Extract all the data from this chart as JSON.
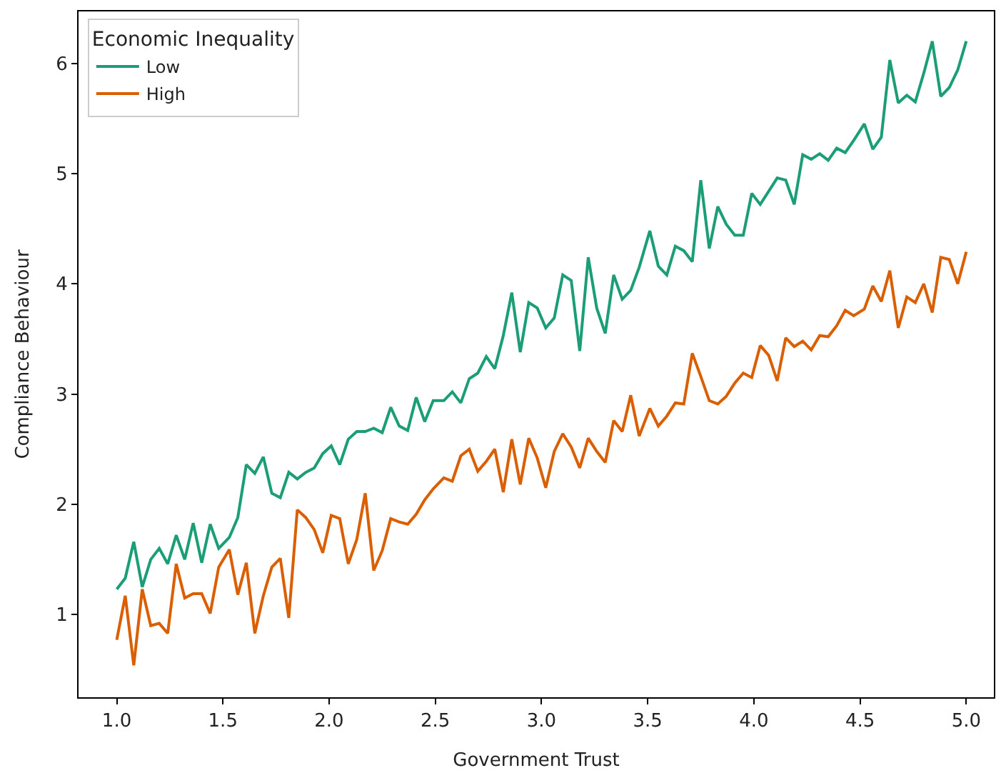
{
  "chart_data": {
    "type": "line",
    "xlabel": "Government Trust",
    "ylabel": "Compliance Behaviour",
    "legend_title": "Economic Inequality",
    "legend": "top left",
    "line_style": "solid",
    "marker": "none",
    "x": [
      1.0,
      1.04,
      1.08,
      1.12,
      1.16,
      1.2,
      1.24,
      1.28,
      1.32,
      1.36,
      1.4,
      1.44,
      1.48,
      1.53,
      1.57,
      1.61,
      1.65,
      1.69,
      1.73,
      1.77,
      1.81,
      1.85,
      1.89,
      1.93,
      1.97,
      2.01,
      2.05,
      2.09,
      2.13,
      2.17,
      2.21,
      2.25,
      2.29,
      2.33,
      2.37,
      2.41,
      2.45,
      2.49,
      2.54,
      2.58,
      2.62,
      2.66,
      2.7,
      2.74,
      2.78,
      2.82,
      2.86,
      2.9,
      2.94,
      2.98,
      3.02,
      3.06,
      3.1,
      3.14,
      3.18,
      3.22,
      3.26,
      3.3,
      3.34,
      3.38,
      3.42,
      3.46,
      3.51,
      3.55,
      3.59,
      3.63,
      3.67,
      3.71,
      3.75,
      3.79,
      3.83,
      3.87,
      3.91,
      3.95,
      3.99,
      4.03,
      4.07,
      4.11,
      4.15,
      4.19,
      4.23,
      4.27,
      4.31,
      4.35,
      4.39,
      4.43,
      4.47,
      4.52,
      4.56,
      4.6,
      4.64,
      4.68,
      4.72,
      4.76,
      4.8,
      4.84,
      4.88,
      4.92,
      4.96,
      5.0
    ],
    "series": [
      {
        "name": "Low",
        "color": "#1b9e77",
        "values": [
          1.23,
          1.33,
          1.66,
          1.25,
          1.5,
          1.6,
          1.46,
          1.72,
          1.5,
          1.83,
          1.47,
          1.82,
          1.6,
          1.7,
          1.88,
          2.36,
          2.28,
          2.43,
          2.1,
          2.06,
          2.29,
          2.23,
          2.29,
          2.33,
          2.46,
          2.53,
          2.36,
          2.59,
          2.66,
          2.66,
          2.69,
          2.65,
          2.88,
          2.71,
          2.67,
          2.97,
          2.75,
          2.94,
          2.94,
          3.02,
          2.92,
          3.14,
          3.19,
          3.34,
          3.23,
          3.53,
          3.92,
          3.38,
          3.83,
          3.78,
          3.6,
          3.69,
          4.08,
          4.03,
          3.39,
          4.24,
          3.78,
          3.55,
          4.08,
          3.86,
          3.94,
          4.15,
          4.48,
          4.16,
          4.08,
          4.34,
          4.3,
          4.2,
          4.94,
          4.32,
          4.7,
          4.54,
          4.44,
          4.44,
          4.82,
          4.72,
          4.84,
          4.96,
          4.94,
          4.72,
          5.17,
          5.13,
          5.18,
          5.12,
          5.23,
          5.19,
          5.3,
          5.45,
          5.22,
          5.33,
          6.03,
          5.64,
          5.71,
          5.65,
          5.91,
          6.2,
          5.7,
          5.78,
          5.94,
          6.2
        ]
      },
      {
        "name": "High",
        "color": "#d95f02",
        "values": [
          0.77,
          1.17,
          0.54,
          1.23,
          0.9,
          0.92,
          0.83,
          1.46,
          1.15,
          1.19,
          1.19,
          1.01,
          1.43,
          1.59,
          1.18,
          1.47,
          0.83,
          1.17,
          1.43,
          1.51,
          0.97,
          1.95,
          1.88,
          1.77,
          1.56,
          1.9,
          1.87,
          1.46,
          1.68,
          2.1,
          1.4,
          1.58,
          1.87,
          1.84,
          1.82,
          1.91,
          2.04,
          2.14,
          2.24,
          2.21,
          2.44,
          2.5,
          2.3,
          2.39,
          2.5,
          2.11,
          2.59,
          2.18,
          2.6,
          2.42,
          2.15,
          2.48,
          2.64,
          2.52,
          2.33,
          2.6,
          2.48,
          2.38,
          2.76,
          2.66,
          2.99,
          2.62,
          2.87,
          2.71,
          2.8,
          2.92,
          2.91,
          3.37,
          3.16,
          2.94,
          2.91,
          2.98,
          3.1,
          3.19,
          3.15,
          3.44,
          3.35,
          3.12,
          3.51,
          3.43,
          3.48,
          3.4,
          3.53,
          3.52,
          3.62,
          3.76,
          3.71,
          3.77,
          3.98,
          3.84,
          4.12,
          3.6,
          3.88,
          3.83,
          4.0,
          3.74,
          4.24,
          4.22,
          4.0,
          4.29
        ]
      }
    ],
    "xlim": [
      0.82,
      5.13
    ],
    "ylim": [
      0.25,
      6.47
    ],
    "xticks": [
      {
        "value": 1,
        "label": "1.0"
      },
      {
        "value": 1.5,
        "label": "1.5"
      },
      {
        "value": 2,
        "label": "2.0"
      },
      {
        "value": 2.5,
        "label": "2.5"
      },
      {
        "value": 3,
        "label": "3.0"
      },
      {
        "value": 3.5,
        "label": "3.5"
      },
      {
        "value": 4,
        "label": "4.0"
      },
      {
        "value": 4.5,
        "label": "4.5"
      },
      {
        "value": 5,
        "label": "5.0"
      }
    ],
    "yticks": [
      1,
      2,
      3,
      4,
      5,
      6
    ]
  }
}
